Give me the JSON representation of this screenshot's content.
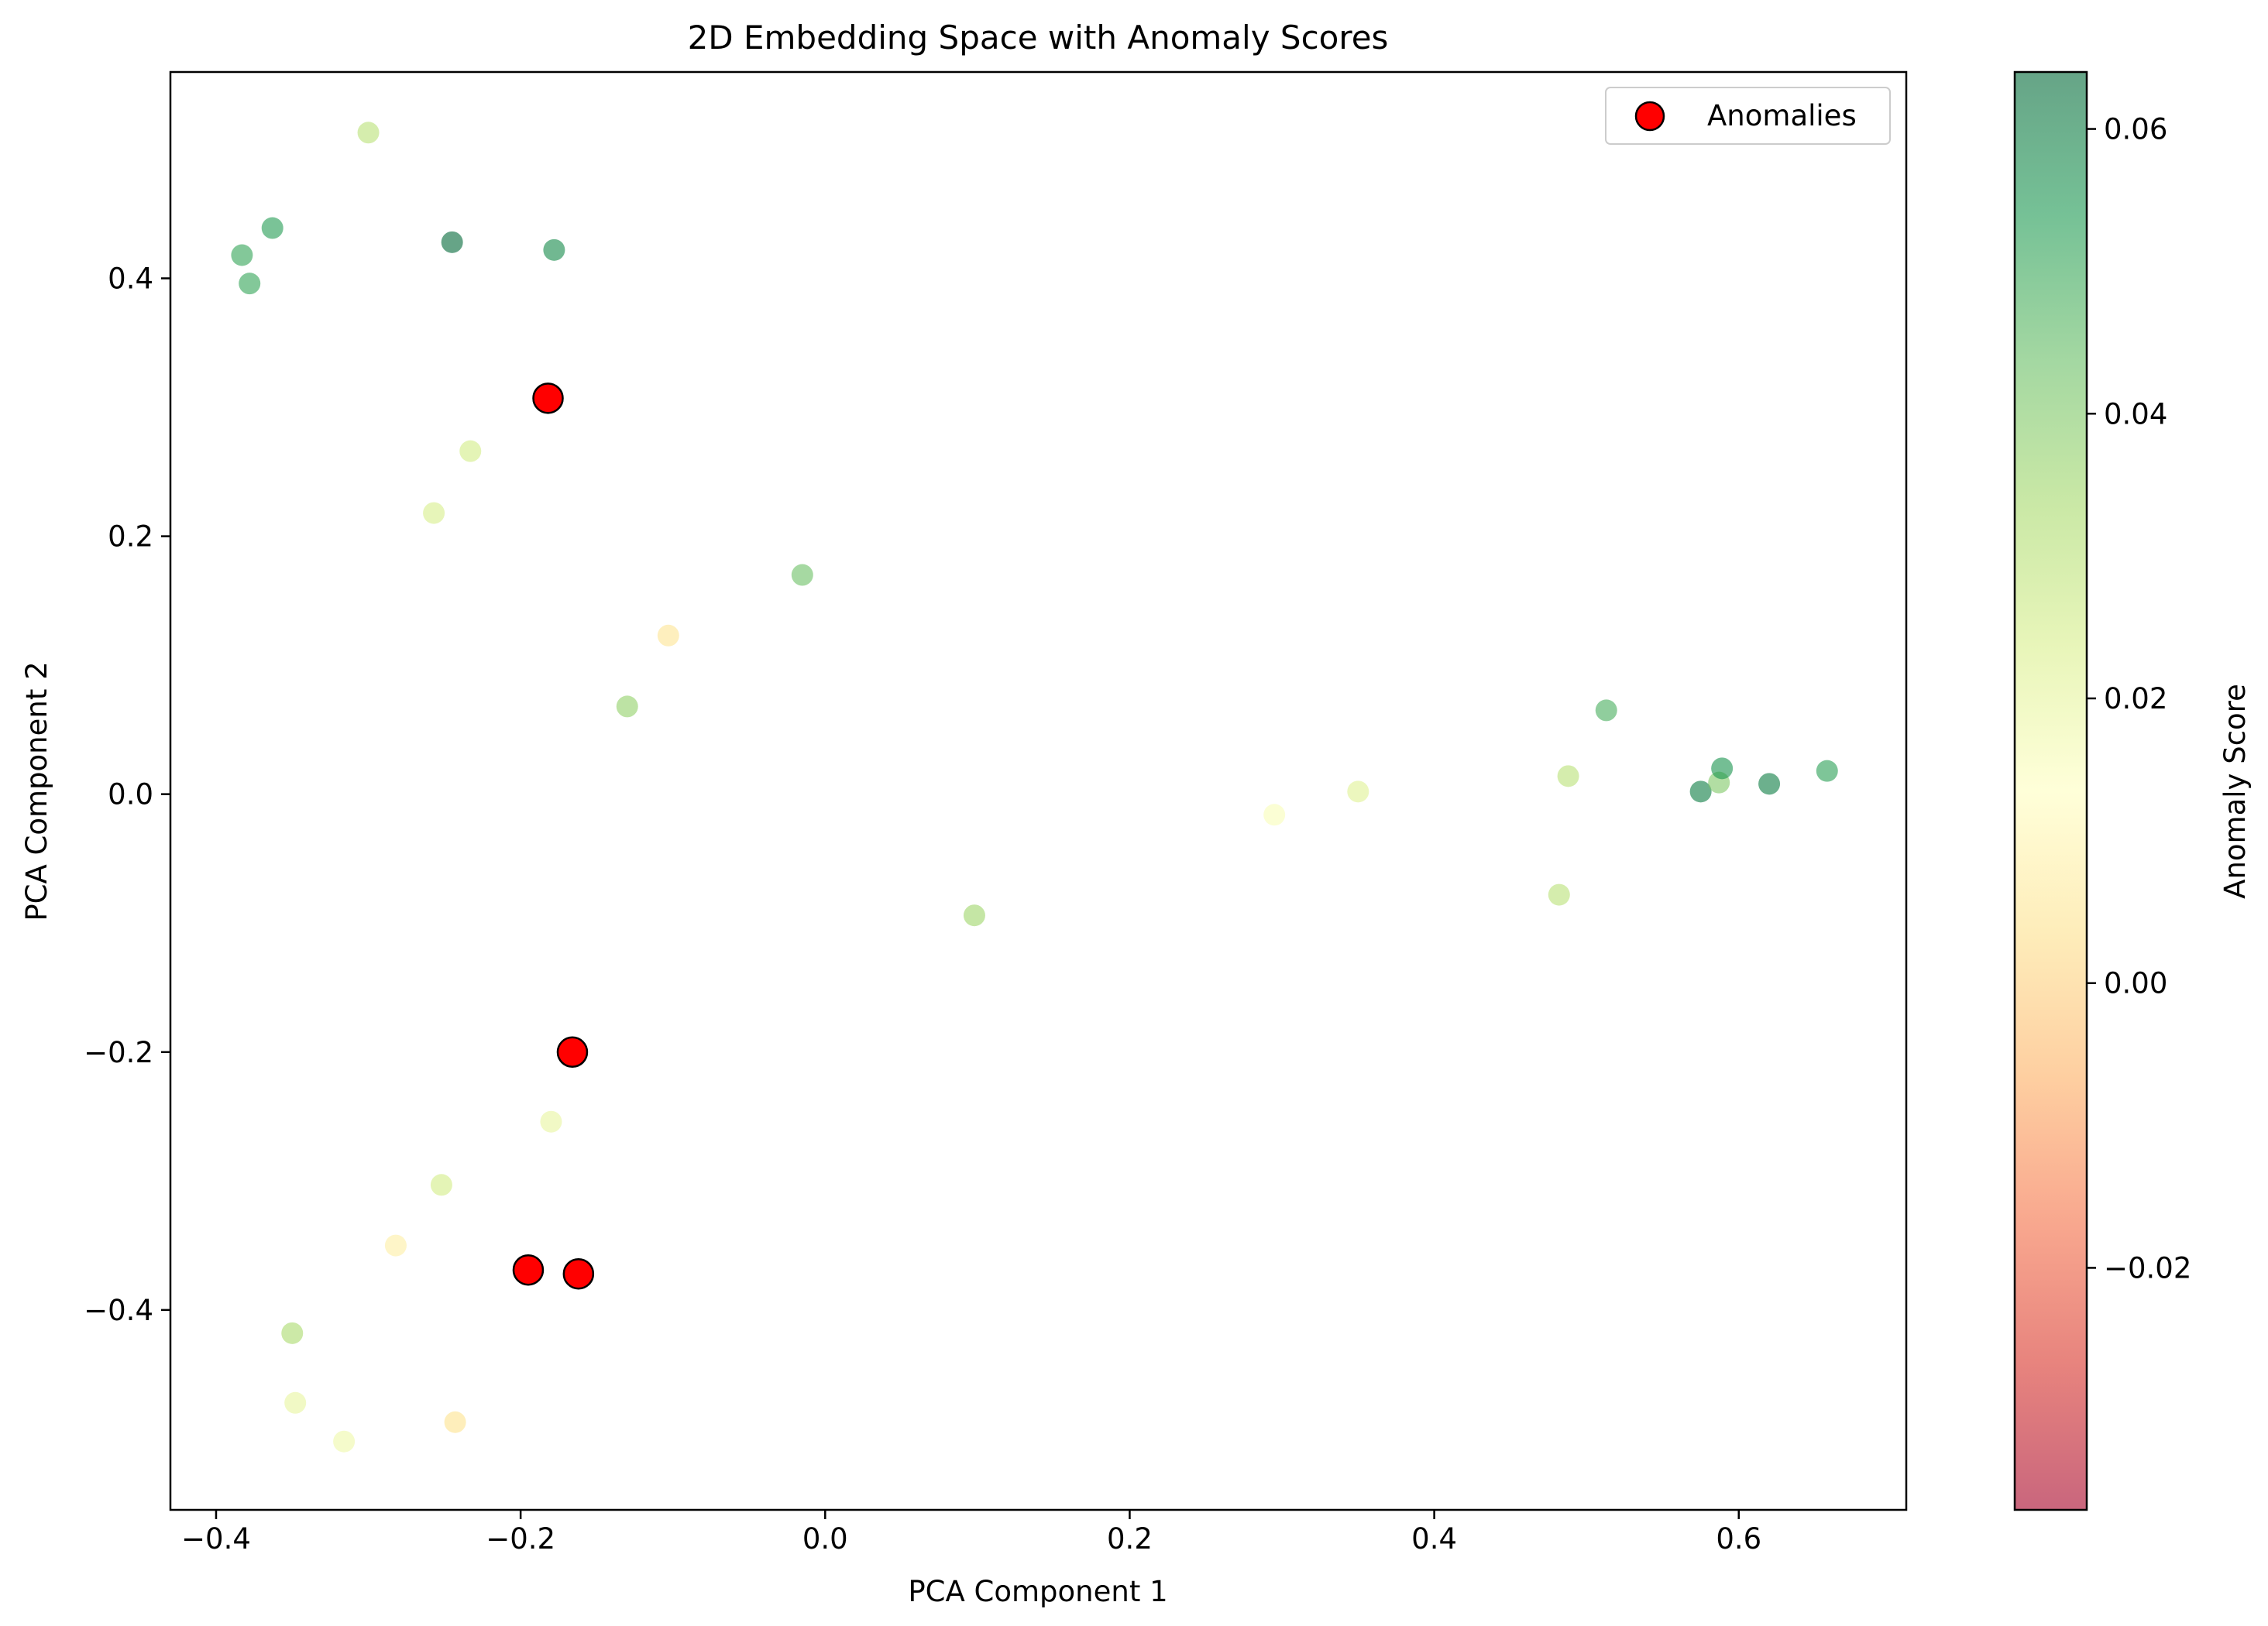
{
  "chart_data": {
    "type": "scatter",
    "title": "2D Embedding Space with Anomaly Scores",
    "xlabel": "PCA Component 1",
    "ylabel": "PCA Component 2",
    "xlim": [
      -0.43,
      0.71
    ],
    "ylim": [
      -0.555,
      0.56
    ],
    "xticks": [
      -0.4,
      -0.2,
      0.0,
      0.2,
      0.4,
      0.6
    ],
    "xtick_labels": [
      "−0.4",
      "−0.2",
      "0.0",
      "0.2",
      "0.4",
      "0.6"
    ],
    "yticks": [
      -0.4,
      -0.2,
      0.0,
      0.2,
      0.4
    ],
    "ytick_labels": [
      "−0.4",
      "−0.2",
      "0.0",
      "0.2",
      "0.4"
    ],
    "grid": false,
    "legend": {
      "position": "top-right",
      "entries": [
        "Anomalies"
      ]
    },
    "colorbar": {
      "label": "Anomaly Score",
      "colormap": "RdYlGn",
      "range": [
        -0.037,
        0.064
      ],
      "ticks": [
        -0.02,
        0.0,
        0.02,
        0.04,
        0.06
      ],
      "tick_labels": [
        "−0.02",
        "0.00",
        "0.02",
        "0.04",
        "0.06"
      ],
      "alpha": 0.6
    },
    "series": [
      {
        "kind": "colormapped",
        "points": [
          {
            "x": -0.3,
            "y": 0.513,
            "score": 0.03
          },
          {
            "x": -0.383,
            "y": 0.418,
            "score": 0.051
          },
          {
            "x": -0.363,
            "y": 0.439,
            "score": 0.053
          },
          {
            "x": -0.378,
            "y": 0.396,
            "score": 0.051
          },
          {
            "x": -0.245,
            "y": 0.428,
            "score": 0.064
          },
          {
            "x": -0.178,
            "y": 0.422,
            "score": 0.057
          },
          {
            "x": -0.233,
            "y": 0.266,
            "score": 0.025
          },
          {
            "x": -0.257,
            "y": 0.218,
            "score": 0.024
          },
          {
            "x": -0.015,
            "y": 0.17,
            "score": 0.043
          },
          {
            "x": -0.103,
            "y": 0.123,
            "score": 0.005
          },
          {
            "x": -0.13,
            "y": 0.068,
            "score": 0.037
          },
          {
            "x": 0.513,
            "y": 0.065,
            "score": 0.048
          },
          {
            "x": 0.488,
            "y": 0.014,
            "score": 0.03
          },
          {
            "x": 0.575,
            "y": 0.002,
            "score": 0.06
          },
          {
            "x": 0.587,
            "y": 0.009,
            "score": 0.04
          },
          {
            "x": 0.589,
            "y": 0.02,
            "score": 0.055
          },
          {
            "x": 0.62,
            "y": 0.008,
            "score": 0.06
          },
          {
            "x": 0.658,
            "y": 0.018,
            "score": 0.052
          },
          {
            "x": 0.35,
            "y": 0.002,
            "score": 0.022
          },
          {
            "x": 0.295,
            "y": -0.016,
            "score": 0.015
          },
          {
            "x": 0.482,
            "y": -0.078,
            "score": 0.03
          },
          {
            "x": 0.098,
            "y": -0.094,
            "score": 0.035
          },
          {
            "x": -0.18,
            "y": -0.254,
            "score": 0.02
          },
          {
            "x": -0.252,
            "y": -0.303,
            "score": 0.025
          },
          {
            "x": -0.282,
            "y": -0.35,
            "score": 0.008
          },
          {
            "x": -0.35,
            "y": -0.418,
            "score": 0.033
          },
          {
            "x": -0.348,
            "y": -0.472,
            "score": 0.02
          },
          {
            "x": -0.316,
            "y": -0.502,
            "score": 0.018
          },
          {
            "x": -0.243,
            "y": -0.487,
            "score": 0.004
          }
        ]
      },
      {
        "name": "Anomalies",
        "kind": "highlight",
        "color": "#ff0000",
        "edge_color": "#000000",
        "points": [
          {
            "x": -0.182,
            "y": 0.307
          },
          {
            "x": -0.166,
            "y": -0.2
          },
          {
            "x": -0.195,
            "y": -0.369
          },
          {
            "x": -0.162,
            "y": -0.372
          }
        ]
      }
    ]
  }
}
